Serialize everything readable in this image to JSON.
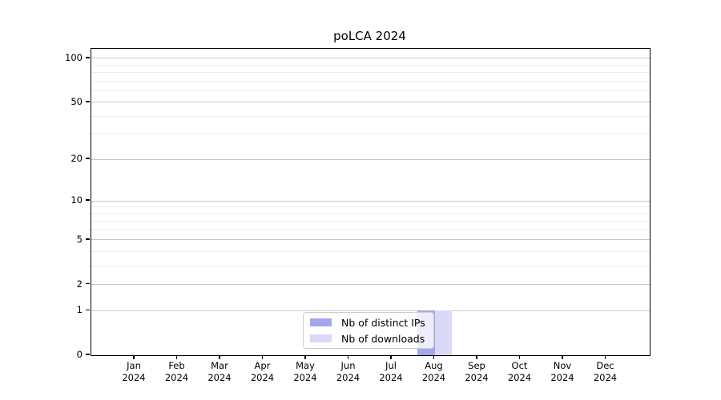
{
  "title": "poLCA 2024",
  "legend": {
    "entries": [
      {
        "label": "Nb of distinct IPs"
      },
      {
        "label": "Nb of downloads"
      }
    ]
  },
  "chart_data": {
    "type": "bar",
    "title": "poLCA 2024",
    "categories": [
      "Jan 2024",
      "Feb 2024",
      "Mar 2024",
      "Apr 2024",
      "May 2024",
      "Jun 2024",
      "Jul 2024",
      "Aug 2024",
      "Sep 2024",
      "Oct 2024",
      "Nov 2024",
      "Dec 2024"
    ],
    "series": [
      {
        "name": "Nb of distinct IPs",
        "color": "#a6a6ec",
        "values": [
          0,
          0,
          0,
          0,
          0,
          0,
          0,
          1,
          0,
          0,
          0,
          0
        ]
      },
      {
        "name": "Nb of downloads",
        "color": "#d9d9f7",
        "values": [
          0,
          0,
          0,
          0,
          0,
          0,
          0,
          1,
          0,
          0,
          0,
          0
        ]
      }
    ],
    "xlabel": "",
    "ylabel": "",
    "yscale": "log1p",
    "ylim": [
      0,
      115
    ],
    "yticks_major": [
      0,
      1,
      2,
      5,
      10,
      20,
      50,
      100
    ],
    "yticks_minor": [
      3,
      4,
      6,
      7,
      8,
      9,
      30,
      40,
      60,
      70,
      80,
      90
    ],
    "grid": true,
    "legend_position": "lower center",
    "colors": {
      "grid_major": "#c9c9c9",
      "grid_minor": "#ededed",
      "axis": "#000000",
      "background": "#ffffff"
    }
  }
}
